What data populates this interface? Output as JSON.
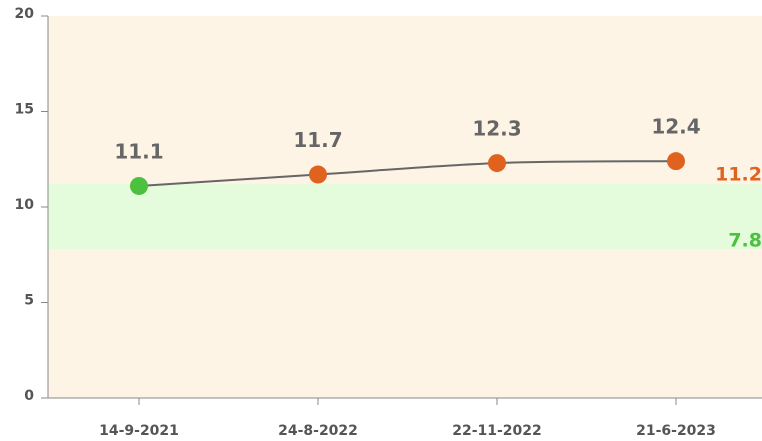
{
  "chart_data": {
    "type": "line",
    "categories": [
      "14-9-2021",
      "24-8-2022",
      "22-11-2022",
      "21-6-2023"
    ],
    "series": [
      {
        "values": [
          11.1,
          11.7,
          12.3,
          12.4
        ],
        "color": "#666666",
        "point_colors": [
          "#4cc03f",
          "#e0621f",
          "#e0621f",
          "#e0621f"
        ]
      }
    ],
    "reference_band": {
      "low": 7.8,
      "high": 11.2,
      "color": "#e4fbdc",
      "low_color": "#4cc03f",
      "high_color": "#e0621f"
    },
    "background": "#fdf4e6",
    "ylim": [
      0,
      20
    ],
    "yticks": [
      0,
      5,
      10,
      15,
      20
    ]
  }
}
